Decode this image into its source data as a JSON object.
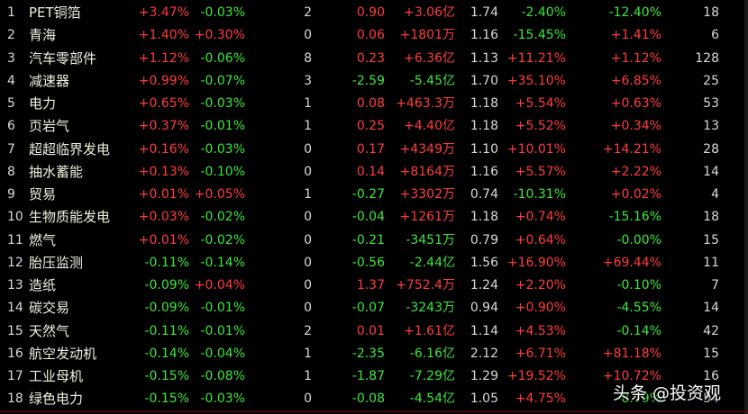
{
  "table": {
    "columns_signed": [
      2,
      3,
      5,
      6,
      8,
      9
    ],
    "rows": [
      [
        "1",
        "PET铜箔",
        "+3.47%",
        "-0.03%",
        "2",
        "0.90",
        "+3.06亿",
        "1.74",
        "-2.40%",
        "-12.40%",
        "18"
      ],
      [
        "2",
        "青海",
        "+1.40%",
        "+0.30%",
        "0",
        "0.06",
        "+1801万",
        "1.16",
        "-15.45%",
        "+1.41%",
        "6"
      ],
      [
        "3",
        "汽车零部件",
        "+1.12%",
        "-0.06%",
        "8",
        "0.23",
        "+6.36亿",
        "1.13",
        "+11.21%",
        "+1.12%",
        "128"
      ],
      [
        "4",
        "减速器",
        "+0.99%",
        "-0.07%",
        "3",
        "-2.59",
        "-5.45亿",
        "1.70",
        "+35.10%",
        "+6.85%",
        "25"
      ],
      [
        "5",
        "电力",
        "+0.65%",
        "-0.03%",
        "1",
        "0.08",
        "+463.3万",
        "1.18",
        "+5.54%",
        "+0.63%",
        "53"
      ],
      [
        "6",
        "页岩气",
        "+0.37%",
        "-0.01%",
        "1",
        "0.25",
        "+4.40亿",
        "1.18",
        "+5.52%",
        "+0.34%",
        "13"
      ],
      [
        "7",
        "超超临界发电",
        "+0.16%",
        "-0.03%",
        "0",
        "0.17",
        "+4349万",
        "1.10",
        "+10.01%",
        "+14.21%",
        "28"
      ],
      [
        "8",
        "抽水蓄能",
        "+0.13%",
        "-0.10%",
        "0",
        "0.14",
        "+8164万",
        "1.16",
        "+5.57%",
        "+2.22%",
        "14"
      ],
      [
        "9",
        "贸易",
        "+0.01%",
        "+0.05%",
        "1",
        "-0.27",
        "+3302万",
        "0.74",
        "-10.31%",
        "+0.02%",
        "4"
      ],
      [
        "10",
        "生物质能发电",
        "+0.03%",
        "-0.02%",
        "0",
        "-0.04",
        "+1261万",
        "1.18",
        "+0.74%",
        "-15.16%",
        "18"
      ],
      [
        "11",
        "燃气",
        "+0.01%",
        "-0.02%",
        "0",
        "-0.21",
        "-3451万",
        "0.79",
        "+0.64%",
        "-0.00%",
        "15"
      ],
      [
        "12",
        "胎压监测",
        "-0.11%",
        "-0.14%",
        "0",
        "-0.56",
        "-2.44亿",
        "1.56",
        "+16.90%",
        "+69.44%",
        "11"
      ],
      [
        "13",
        "造纸",
        "-0.09%",
        "+0.04%",
        "0",
        "1.37",
        "+752.4万",
        "1.24",
        "+2.20%",
        "-0.10%",
        "7"
      ],
      [
        "14",
        "碳交易",
        "-0.09%",
        "-0.01%",
        "0",
        "-0.07",
        "-3243万",
        "0.94",
        "+0.90%",
        "-4.55%",
        "14"
      ],
      [
        "15",
        "天然气",
        "-0.11%",
        "-0.01%",
        "2",
        "0.01",
        "+1.61亿",
        "1.14",
        "+4.53%",
        "-0.14%",
        "42"
      ],
      [
        "16",
        "航空发动机",
        "-0.14%",
        "-0.04%",
        "1",
        "-2.35",
        "-6.16亿",
        "2.12",
        "+6.71%",
        "+81.18%",
        "15"
      ],
      [
        "17",
        "工业母机",
        "-0.15%",
        "-0.08%",
        "1",
        "-1.87",
        "-7.29亿",
        "1.29",
        "+19.52%",
        "+10.72%",
        "16"
      ],
      [
        "18",
        "绿色电力",
        "-0.15%",
        "-0.03%",
        "0",
        "-0.08",
        "-4.54亿",
        "1.05",
        "+4.75%",
        "-8.79%",
        "54"
      ]
    ]
  },
  "watermark": "头条 @投资观"
}
